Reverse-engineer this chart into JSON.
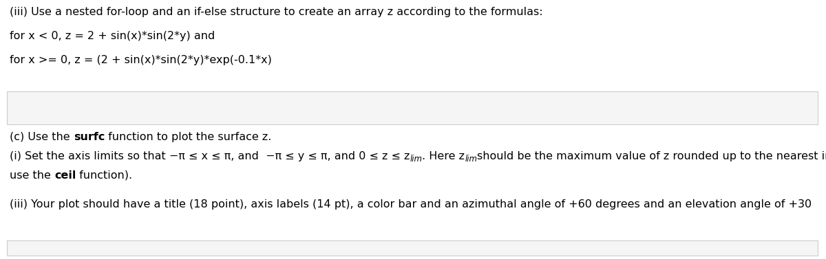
{
  "bg_color": "#ffffff",
  "box_fill": "#f5f5f5",
  "box_edge": "#cccccc",
  "font_size": 11.5,
  "font_family": "DejaVu Sans",
  "line1": "(iii) Use a nested for-loop and an if-else structure to create an array z according to the formulas:",
  "line2": "for x < 0, z = 2 + sin(x)*sin(2*y) and",
  "line3": "for x >= 0, z = (2 + sin(x)*sin(2*y)*exp(-0.1*x)",
  "line_c_pre": "(c) Use the ",
  "line_c_bold": "surfc",
  "line_c_post": " function to plot the surface z.",
  "line_i_pre": "(i) Set the axis limits so that −π ≤ x ≤ π, and  −π ≤ y ≤ π, and 0 ≤ z ≤ z",
  "line_i_sub1": "lim",
  "line_i_mid": ". Here z",
  "line_i_sub2": "lim",
  "line_i_end": "should be the maximum value of z rounded up to the nearest integer. (Hint:",
  "line_use_pre": "use the ",
  "line_use_bold": "ceil",
  "line_use_post": " function).",
  "line_iii": "(iii) Your plot should have a title (18 point), axis labels (14 pt), a color bar and an azimuthal angle of +60 degrees and an elevation angle of +30"
}
